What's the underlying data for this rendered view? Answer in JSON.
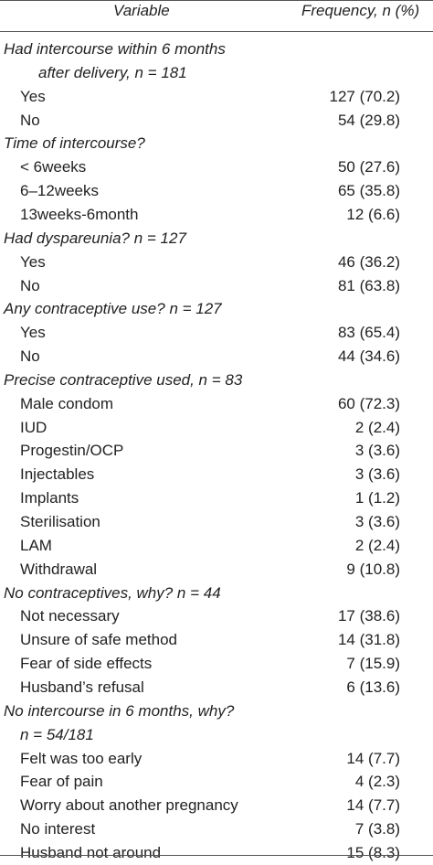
{
  "header": {
    "variable": "Variable",
    "frequency": "Frequency, n (%)"
  },
  "rows": [
    {
      "label": "Had intercourse within 6 months",
      "value": "",
      "type": "cat",
      "indent": 0
    },
    {
      "label": "after delivery, n = 181",
      "value": "",
      "type": "cat",
      "indent": 2
    },
    {
      "label": "Yes",
      "value": "127 (70.2)",
      "type": "item",
      "indent": 1
    },
    {
      "label": "No",
      "value": "54 (29.8)",
      "type": "item",
      "indent": 1
    },
    {
      "label": "Time of intercourse?",
      "value": "",
      "type": "cat",
      "indent": 0
    },
    {
      "label": "< 6weeks",
      "value": "50 (27.6)",
      "type": "item",
      "indent": 1
    },
    {
      "label": "6–12weeks",
      "value": "65 (35.8)",
      "type": "item",
      "indent": 1
    },
    {
      "label": "13weeks-6month",
      "value": "12 (6.6)",
      "type": "item",
      "indent": 1
    },
    {
      "label": "Had dyspareunia? n = 127",
      "value": "",
      "type": "cat",
      "indent": 0
    },
    {
      "label": "Yes",
      "value": "46 (36.2)",
      "type": "item",
      "indent": 1
    },
    {
      "label": "No",
      "value": "81 (63.8)",
      "type": "item",
      "indent": 1
    },
    {
      "label": "Any contraceptive use? n = 127",
      "value": "",
      "type": "cat",
      "indent": 0
    },
    {
      "label": "Yes",
      "value": "83 (65.4)",
      "type": "item",
      "indent": 1
    },
    {
      "label": "No",
      "value": "44 (34.6)",
      "type": "item",
      "indent": 1
    },
    {
      "label": "Precise contraceptive used, n = 83",
      "value": "",
      "type": "cat",
      "indent": 0
    },
    {
      "label": "Male condom",
      "value": "60 (72.3)",
      "type": "item",
      "indent": 1
    },
    {
      "label": "IUD",
      "value": "2 (2.4)",
      "type": "item",
      "indent": 1
    },
    {
      "label": "Progestin/OCP",
      "value": "3 (3.6)",
      "type": "item",
      "indent": 1
    },
    {
      "label": "Injectables",
      "value": "3 (3.6)",
      "type": "item",
      "indent": 1
    },
    {
      "label": "Implants",
      "value": "1 (1.2)",
      "type": "item",
      "indent": 1
    },
    {
      "label": "Sterilisation",
      "value": "3 (3.6)",
      "type": "item",
      "indent": 1
    },
    {
      "label": "LAM",
      "value": "2 (2.4)",
      "type": "item",
      "indent": 1
    },
    {
      "label": "Withdrawal",
      "value": "9 (10.8)",
      "type": "item",
      "indent": 1
    },
    {
      "label": "No contraceptives, why? n = 44",
      "value": "",
      "type": "cat",
      "indent": 0
    },
    {
      "label": "Not necessary",
      "value": "17 (38.6)",
      "type": "item",
      "indent": 1
    },
    {
      "label": "Unsure of safe method",
      "value": "14 (31.8)",
      "type": "item",
      "indent": 1
    },
    {
      "label": "Fear of side effects",
      "value": "7 (15.9)",
      "type": "item",
      "indent": 1
    },
    {
      "label": "Husband’s refusal",
      "value": "6 (13.6)",
      "type": "item",
      "indent": 1
    },
    {
      "label": "No intercourse in 6 months, why?",
      "value": "",
      "type": "cat",
      "indent": 0
    },
    {
      "label": "n = 54/181",
      "value": "",
      "type": "cat",
      "indent": 1
    },
    {
      "label": "Felt was too early",
      "value": "14 (7.7)",
      "type": "item",
      "indent": 1
    },
    {
      "label": "Fear of pain",
      "value": "4 (2.3)",
      "type": "item",
      "indent": 1
    },
    {
      "label": "Worry about another pregnancy",
      "value": "14 (7.7)",
      "type": "item",
      "indent": 1
    },
    {
      "label": "No interest",
      "value": "7 (3.8)",
      "type": "item",
      "indent": 1
    },
    {
      "label": "Husband not around",
      "value": "15 (8.3)",
      "type": "item",
      "indent": 1
    }
  ]
}
